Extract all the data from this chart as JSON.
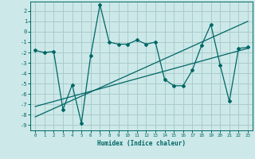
{
  "xlabel": "Humidex (Indice chaleur)",
  "background_color": "#cce8e8",
  "grid_color": "#aacccc",
  "line_color": "#006666",
  "xlim": [
    -0.5,
    23.5
  ],
  "ylim": [
    -9.5,
    2.9
  ],
  "xticks": [
    0,
    1,
    2,
    3,
    4,
    5,
    6,
    7,
    8,
    9,
    10,
    11,
    12,
    13,
    14,
    15,
    16,
    17,
    18,
    19,
    20,
    21,
    22,
    23
  ],
  "yticks": [
    2,
    1,
    0,
    -1,
    -2,
    -3,
    -4,
    -5,
    -6,
    -7,
    -8,
    -9
  ],
  "series": [
    [
      0,
      -1.8
    ],
    [
      1,
      -2.0
    ],
    [
      2,
      -1.9
    ],
    [
      3,
      -7.5
    ],
    [
      4,
      -5.1
    ],
    [
      5,
      -8.8
    ],
    [
      6,
      -2.3
    ],
    [
      7,
      2.6
    ],
    [
      8,
      -1.0
    ],
    [
      9,
      -1.2
    ],
    [
      10,
      -1.2
    ],
    [
      11,
      -0.8
    ],
    [
      12,
      -1.2
    ],
    [
      13,
      -1.0
    ],
    [
      14,
      -4.6
    ],
    [
      15,
      -5.2
    ],
    [
      16,
      -5.2
    ],
    [
      17,
      -3.7
    ],
    [
      18,
      -1.3
    ],
    [
      19,
      0.7
    ],
    [
      20,
      -3.2
    ],
    [
      21,
      -6.7
    ],
    [
      22,
      -1.6
    ],
    [
      23,
      -1.5
    ]
  ],
  "line1": [
    [
      0,
      -8.2
    ],
    [
      23,
      1.0
    ]
  ],
  "line2": [
    [
      0,
      -7.2
    ],
    [
      23,
      -1.6
    ]
  ]
}
